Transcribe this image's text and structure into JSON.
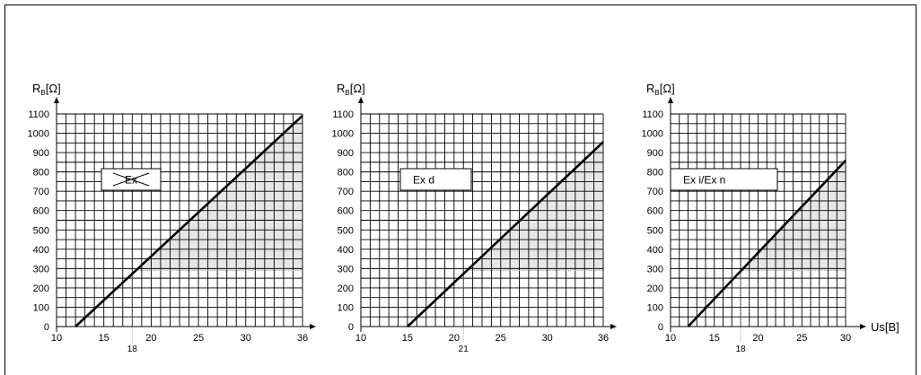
{
  "colors": {
    "line": "#000000",
    "grid": "#000000",
    "shade": "#e6e6e6",
    "ref": "#9a9a9a"
  },
  "chart_data": [
    {
      "type": "line",
      "label": "Ex",
      "label_struck_through": true,
      "ylabel_main": "R",
      "ylabel_sub": "B",
      "ylabel_unit": "[Ω]",
      "xlabel": "",
      "xlim": [
        10,
        36
      ],
      "ylim": [
        0,
        1100
      ],
      "x_ticks": [
        "10",
        "15",
        "20",
        "25",
        "30",
        "36"
      ],
      "y_ticks": [
        "0",
        "100",
        "200",
        "300",
        "400",
        "500",
        "600",
        "700",
        "800",
        "900",
        "1000",
        "1100"
      ],
      "grid": true,
      "series": [
        {
          "x": [
            12,
            36
          ],
          "y": [
            0,
            1091
          ]
        }
      ],
      "shaded_region": {
        "x_from": 18.6,
        "x_to": 36,
        "y_min": 290
      },
      "reference": {
        "x": 18,
        "label": "18"
      }
    },
    {
      "type": "line",
      "label": "Ex d",
      "ylabel_main": "R",
      "ylabel_sub": "B",
      "ylabel_unit": "[Ω]",
      "xlabel": "",
      "xlim": [
        10,
        36
      ],
      "ylim": [
        0,
        1100
      ],
      "x_ticks": [
        "10",
        "15",
        "20",
        "25",
        "30",
        "36"
      ],
      "y_ticks": [
        "0",
        "100",
        "200",
        "300",
        "400",
        "500",
        "600",
        "700",
        "800",
        "900",
        "1000",
        "1100"
      ],
      "grid": true,
      "series": [
        {
          "x": [
            15,
            36
          ],
          "y": [
            0,
            955
          ]
        }
      ],
      "shaded_region": {
        "x_from": 21.4,
        "x_to": 36,
        "y_min": 290
      },
      "reference": {
        "x": 21,
        "label": "21"
      }
    },
    {
      "type": "line",
      "label": "Ex i/Ex n",
      "ylabel_main": "R",
      "ylabel_sub": "B",
      "ylabel_unit": "[Ω]",
      "xlabel": "Us[B]",
      "xlim": [
        10,
        30
      ],
      "ylim": [
        0,
        1100
      ],
      "x_ticks": [
        "10",
        "15",
        "20",
        "25",
        "30"
      ],
      "y_ticks": [
        "0",
        "100",
        "200",
        "300",
        "400",
        "500",
        "600",
        "700",
        "800",
        "900",
        "1000",
        "1100"
      ],
      "grid": true,
      "series": [
        {
          "x": [
            12,
            30
          ],
          "y": [
            0,
            859
          ]
        }
      ],
      "shaded_region": {
        "x_from": 18.3,
        "x_to": 30,
        "y_min": 290
      },
      "reference": {
        "x": 18,
        "label": "18"
      }
    }
  ]
}
